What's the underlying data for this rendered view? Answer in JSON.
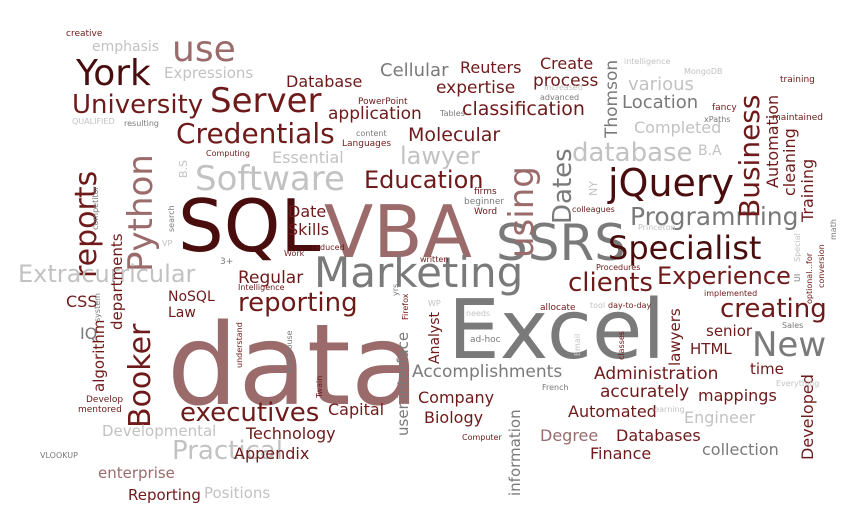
{
  "colors": {
    "background": "#ffffff",
    "dark": "#4a0d0d",
    "maroon": "#6e1a1a",
    "rose": "#9b6b6b",
    "gray": "#7a7a7a",
    "light": "#c2c2c2"
  },
  "words": [
    {
      "text": "data",
      "color": "#9b6b6b"
    },
    {
      "text": "Excel",
      "color": "#7a7a7a"
    },
    {
      "text": "VBA",
      "color": "#9b6b6b"
    },
    {
      "text": "SQL",
      "color": "#4a0d0d"
    },
    {
      "text": "SSRS",
      "color": "#7a7a7a"
    },
    {
      "text": "Marketing",
      "color": "#7a7a7a"
    },
    {
      "text": "Specialist",
      "color": "#4a0d0d"
    },
    {
      "text": "jQuery",
      "color": "#4a0d0d"
    },
    {
      "text": "reports",
      "color": "#6e1a1a"
    },
    {
      "text": "Booker",
      "color": "#6e1a1a"
    },
    {
      "text": "using",
      "color": "#9b6b6b"
    },
    {
      "text": "Python",
      "color": "#9b6b6b"
    },
    {
      "text": "Software",
      "color": "#c2c2c2"
    },
    {
      "text": "Server",
      "color": "#6e1a1a"
    },
    {
      "text": "York",
      "color": "#4a0d0d"
    },
    {
      "text": "use",
      "color": "#9b6b6b"
    },
    {
      "text": "University",
      "color": "#6e1a1a"
    },
    {
      "text": "Credentials",
      "color": "#6e1a1a"
    },
    {
      "text": "Education",
      "color": "#6e1a1a"
    },
    {
      "text": "database",
      "color": "#c2c2c2"
    },
    {
      "text": "Programming",
      "color": "#7a7a7a"
    },
    {
      "text": "Business",
      "color": "#6e1a1a"
    },
    {
      "text": "Extracurricular",
      "color": "#c2c2c2"
    },
    {
      "text": "clients",
      "color": "#6e1a1a"
    },
    {
      "text": "Experience",
      "color": "#6e1a1a"
    },
    {
      "text": "reporting",
      "color": "#6e1a1a"
    },
    {
      "text": "creating",
      "color": "#6e1a1a"
    },
    {
      "text": "New",
      "color": "#7a7a7a"
    },
    {
      "text": "executives",
      "color": "#6e1a1a"
    },
    {
      "text": "Practical",
      "color": "#c2c2c2"
    },
    {
      "text": "Dates",
      "color": "#7a7a7a"
    },
    {
      "text": "lawyer",
      "color": "#c2c2c2"
    },
    {
      "text": "classification",
      "color": "#6e1a1a"
    },
    {
      "text": "Molecular",
      "color": "#6e1a1a"
    },
    {
      "text": "application",
      "color": "#6e1a1a"
    },
    {
      "text": "Cellular",
      "color": "#7a7a7a"
    },
    {
      "text": "Database",
      "color": "#6e1a1a"
    },
    {
      "text": "Reuters",
      "color": "#6e1a1a"
    },
    {
      "text": "Create",
      "color": "#6e1a1a"
    },
    {
      "text": "process",
      "color": "#6e1a1a"
    },
    {
      "text": "expertise",
      "color": "#6e1a1a"
    },
    {
      "text": "Thomson",
      "color": "#7a7a7a"
    },
    {
      "text": "various",
      "color": "#c2c2c2"
    },
    {
      "text": "Location",
      "color": "#7a7a7a"
    },
    {
      "text": "Completed",
      "color": "#c2c2c2"
    },
    {
      "text": "Automation",
      "color": "#6e1a1a"
    },
    {
      "text": "cleaning",
      "color": "#6e1a1a"
    },
    {
      "text": "Training",
      "color": "#6e1a1a"
    },
    {
      "text": "Essential",
      "color": "#c2c2c2"
    },
    {
      "text": "Expressions",
      "color": "#c2c2c2"
    },
    {
      "text": "emphasis",
      "color": "#c2c2c2"
    },
    {
      "text": "Date",
      "color": "#6e1a1a"
    },
    {
      "text": "Skills",
      "color": "#6e1a1a"
    },
    {
      "text": "departments",
      "color": "#6e1a1a"
    },
    {
      "text": "Regular",
      "color": "#6e1a1a"
    },
    {
      "text": "NoSQL",
      "color": "#6e1a1a"
    },
    {
      "text": "Law",
      "color": "#6e1a1a"
    },
    {
      "text": "CSS",
      "color": "#6e1a1a"
    },
    {
      "text": "IQ",
      "color": "#7a7a7a"
    },
    {
      "text": "algorithm",
      "color": "#6e1a1a"
    },
    {
      "text": "Developmental",
      "color": "#c2c2c2"
    },
    {
      "text": "enterprise",
      "color": "#9b6b6b"
    },
    {
      "text": "Reporting",
      "color": "#6e1a1a"
    },
    {
      "text": "Positions",
      "color": "#c2c2c2"
    },
    {
      "text": "Appendix",
      "color": "#6e1a1a"
    },
    {
      "text": "Technology",
      "color": "#6e1a1a"
    },
    {
      "text": "Capital",
      "color": "#6e1a1a"
    },
    {
      "text": "Accomplishments",
      "color": "#7a7a7a"
    },
    {
      "text": "accurately",
      "color": "#6e1a1a"
    },
    {
      "text": "Administration",
      "color": "#6e1a1a"
    },
    {
      "text": "Automated",
      "color": "#6e1a1a"
    },
    {
      "text": "Company",
      "color": "#6e1a1a"
    },
    {
      "text": "Biology",
      "color": "#6e1a1a"
    },
    {
      "text": "Degree",
      "color": "#9b6b6b"
    },
    {
      "text": "Databases",
      "color": "#6e1a1a"
    },
    {
      "text": "Finance",
      "color": "#6e1a1a"
    },
    {
      "text": "collection",
      "color": "#7a7a7a"
    },
    {
      "text": "Engineer",
      "color": "#c2c2c2"
    },
    {
      "text": "mappings",
      "color": "#6e1a1a"
    },
    {
      "text": "Developed",
      "color": "#6e1a1a"
    },
    {
      "text": "HTML",
      "color": "#6e1a1a"
    },
    {
      "text": "senior",
      "color": "#6e1a1a"
    },
    {
      "text": "time",
      "color": "#6e1a1a"
    },
    {
      "text": "lawyers",
      "color": "#6e1a1a"
    },
    {
      "text": "Analyst",
      "color": "#6e1a1a"
    },
    {
      "text": "user-interface",
      "color": "#7a7a7a"
    },
    {
      "text": "information",
      "color": "#7a7a7a"
    },
    {
      "text": "B.A",
      "color": "#c2c2c2"
    },
    {
      "text": "NY",
      "color": "#c2c2c2"
    },
    {
      "text": "B.S",
      "color": "#c2c2c2"
    },
    {
      "text": "creative",
      "color": "#6e1a1a"
    },
    {
      "text": "PowerPoint",
      "color": "#6e1a1a"
    },
    {
      "text": "Tables",
      "color": "#7a7a7a"
    },
    {
      "text": "content",
      "color": "#7a7a7a"
    },
    {
      "text": "Languages",
      "color": "#6e1a1a"
    },
    {
      "text": "Increased",
      "color": "#c2c2c2"
    },
    {
      "text": "advanced",
      "color": "#7a7a7a"
    },
    {
      "text": "intelligence",
      "color": "#c2c2c2"
    },
    {
      "text": "MongoDB",
      "color": "#c2c2c2"
    },
    {
      "text": "training",
      "color": "#6e1a1a"
    },
    {
      "text": "fancy",
      "color": "#6e1a1a"
    },
    {
      "text": "xPaths",
      "color": "#7a7a7a"
    },
    {
      "text": "maintained",
      "color": "#6e1a1a"
    },
    {
      "text": "QUALIFIED",
      "color": "#c2c2c2"
    },
    {
      "text": "resulting",
      "color": "#7a7a7a"
    },
    {
      "text": "Computing",
      "color": "#6e1a1a"
    },
    {
      "text": "competitor",
      "color": "#7a7a7a"
    },
    {
      "text": "search",
      "color": "#7a7a7a"
    },
    {
      "text": "VP",
      "color": "#c2c2c2"
    },
    {
      "text": "firms",
      "color": "#6e1a1a"
    },
    {
      "text": "beginner",
      "color": "#7a7a7a"
    },
    {
      "text": "Word",
      "color": "#6e1a1a"
    },
    {
      "text": "colleagues",
      "color": "#6e1a1a"
    },
    {
      "text": "Princeton",
      "color": "#c2c2c2"
    },
    {
      "text": "Special",
      "color": "#c2c2c2"
    },
    {
      "text": "UI",
      "color": "#7a7a7a"
    },
    {
      "text": "optional...for",
      "color": "#6e1a1a"
    },
    {
      "text": "conversion",
      "color": "#6e1a1a"
    },
    {
      "text": "math",
      "color": "#7a7a7a"
    },
    {
      "text": "3+",
      "color": "#7a7a7a"
    },
    {
      "text": "Work",
      "color": "#6e1a1a"
    },
    {
      "text": "reduced",
      "color": "#6e1a1a"
    },
    {
      "text": "Intelligence",
      "color": "#6e1a1a"
    },
    {
      "text": "written",
      "color": "#6e1a1a"
    },
    {
      "text": "yrs",
      "color": "#7a7a7a"
    },
    {
      "text": "Firefox",
      "color": "#6e1a1a"
    },
    {
      "text": "WP",
      "color": "#c2c2c2"
    },
    {
      "text": "needs",
      "color": "#c2c2c2"
    },
    {
      "text": "allocate",
      "color": "#6e1a1a"
    },
    {
      "text": "tool",
      "color": "#c2c2c2"
    },
    {
      "text": "day-to-day",
      "color": "#6e1a1a"
    },
    {
      "text": "Procedures",
      "color": "#6e1a1a"
    },
    {
      "text": "implemented",
      "color": "#6e1a1a"
    },
    {
      "text": "Sales",
      "color": "#7a7a7a"
    },
    {
      "text": "Everything",
      "color": "#c2c2c2"
    },
    {
      "text": "system",
      "color": "#7a7a7a"
    },
    {
      "text": "understand",
      "color": "#6e1a1a"
    },
    {
      "text": "warehouse",
      "color": "#7a7a7a"
    },
    {
      "text": "Twain",
      "color": "#6e1a1a"
    },
    {
      "text": "ad-hoc",
      "color": "#7a7a7a"
    },
    {
      "text": "French",
      "color": "#7a7a7a"
    },
    {
      "text": "Email",
      "color": "#c2c2c2"
    },
    {
      "text": "classes",
      "color": "#6e1a1a"
    },
    {
      "text": "learning",
      "color": "#c2c2c2"
    },
    {
      "text": "Develop",
      "color": "#6e1a1a"
    },
    {
      "text": "mentored",
      "color": "#6e1a1a"
    },
    {
      "text": "VLOOKUP",
      "color": "#7a7a7a"
    },
    {
      "text": "Computer",
      "color": "#6e1a1a"
    }
  ]
}
